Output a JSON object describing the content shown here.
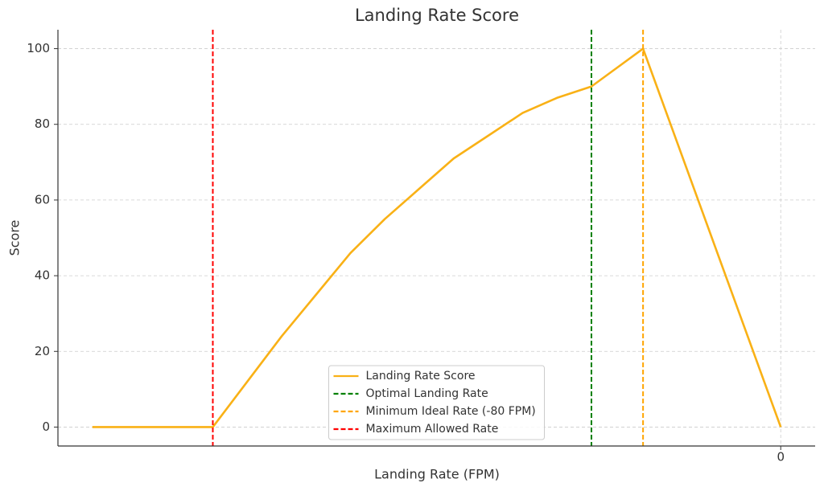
{
  "chart_data": {
    "type": "line",
    "title": "Landing Rate Score",
    "x_label": "Landing Rate (FPM)",
    "y_label": "Score",
    "x": [
      -400,
      -330,
      -310,
      -290,
      -270,
      -250,
      -230,
      -210,
      -190,
      -170,
      -150,
      -130,
      -110,
      -80,
      0
    ],
    "series": [
      {
        "name": "Landing Rate Score",
        "color": "#f9b116",
        "values": [
          0,
          0,
          12,
          24,
          35,
          46,
          55,
          63,
          71,
          77,
          83,
          87,
          90,
          100,
          0
        ]
      }
    ],
    "vlines": [
      {
        "name": "Optimal Landing Rate",
        "color": "#008000",
        "x": -110
      },
      {
        "name": "Minimum Ideal Rate (-80 FPM)",
        "color": "#ffa500",
        "x": -80
      },
      {
        "name": "Maximum Allowed Rate",
        "color": "#ff0000",
        "x": -330
      }
    ],
    "xlim": [
      -420,
      20
    ],
    "xticks": [
      0
    ],
    "ylim": [
      -5,
      105
    ],
    "yticks": [
      0,
      20,
      40,
      60,
      80,
      100
    ],
    "grid": true,
    "legend_position": "lower center"
  }
}
